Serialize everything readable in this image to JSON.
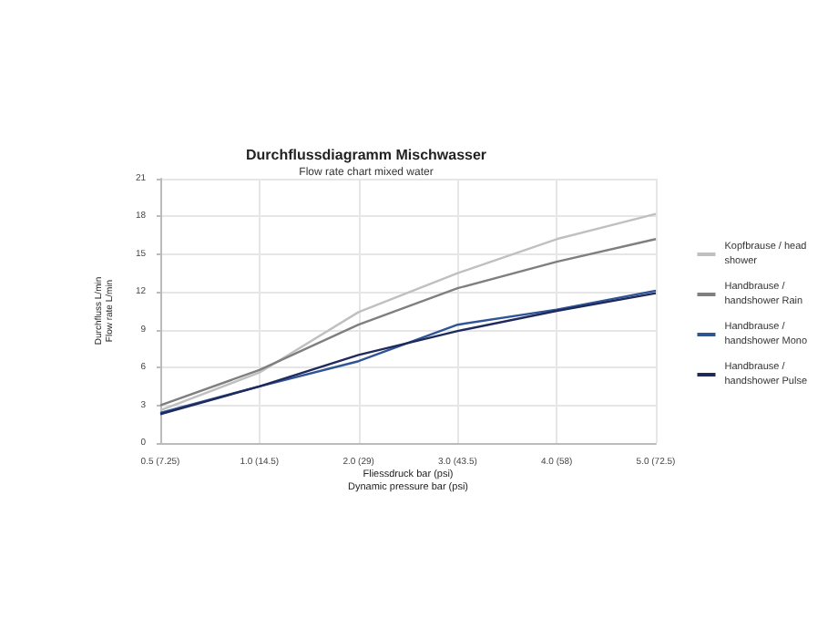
{
  "chart_data": {
    "type": "line",
    "title": "Durchflussdiagramm Mischwasser",
    "subtitle": "Flow rate chart mixed water",
    "xlabel": "Fliessdruck bar (psi)\nDynamic pressure bar (psi)",
    "ylabel": "Durchfluss L/min\nFlow rate L/min",
    "categories": [
      "0.5 (7.25)",
      "1.0 (14.5)",
      "2.0 (29)",
      "3.0 (43.5)",
      "4.0 (58)",
      "5.0 (72.5)"
    ],
    "series": [
      {
        "name": "Kopfbrause / head\nshower",
        "color": "#c0c0c0",
        "values": [
          2.6,
          5.6,
          10.4,
          13.5,
          16.2,
          18.2
        ]
      },
      {
        "name": "Handbrause /\nhandshower Rain",
        "color": "#7f7f7f",
        "values": [
          3.0,
          5.8,
          9.4,
          12.3,
          14.4,
          16.2
        ]
      },
      {
        "name": "Handbrause /\nhandshower Mono",
        "color": "#2f5597",
        "values": [
          2.4,
          4.5,
          6.5,
          9.4,
          10.6,
          12.1
        ]
      },
      {
        "name": "Handbrause /\nhandshower Pulse",
        "color": "#1f2a5c",
        "values": [
          2.3,
          4.5,
          7.0,
          8.9,
          10.5,
          11.9
        ]
      }
    ],
    "ylim": [
      0,
      21
    ],
    "yticks": [
      0,
      3,
      6,
      9,
      12,
      15,
      18,
      21
    ],
    "grid": true,
    "legend": "right",
    "marker": "none",
    "line_style": "solid"
  }
}
